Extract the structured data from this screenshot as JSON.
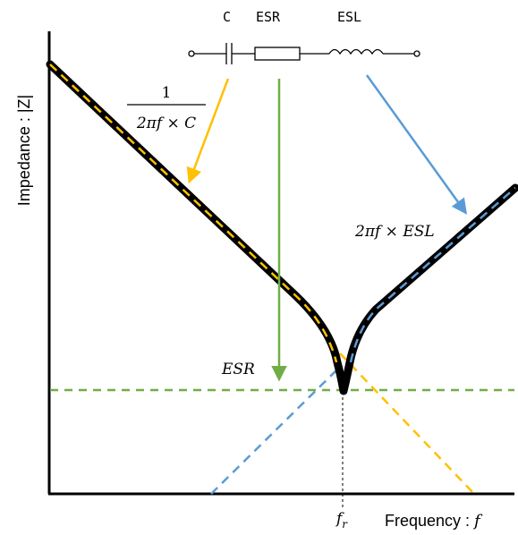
{
  "axes": {
    "y_label": "Impedance : |Z|",
    "x_label": "Frequency : ",
    "x_symbol": "f",
    "resonance_symbol": "f",
    "resonance_subscript": "r"
  },
  "circuit": {
    "c_label": "C",
    "esr_label": "ESR",
    "esl_label": "ESL"
  },
  "annotations": {
    "capacitive_numerator": "1",
    "capacitive_denominator": "2πf × C",
    "inductive_formula": "2πf × ESL",
    "esr_label": "ESR"
  },
  "colors": {
    "curve": "#000000",
    "capacitive": "#FFC000",
    "inductive": "#5B9BD5",
    "resistive": "#70AD47"
  }
}
